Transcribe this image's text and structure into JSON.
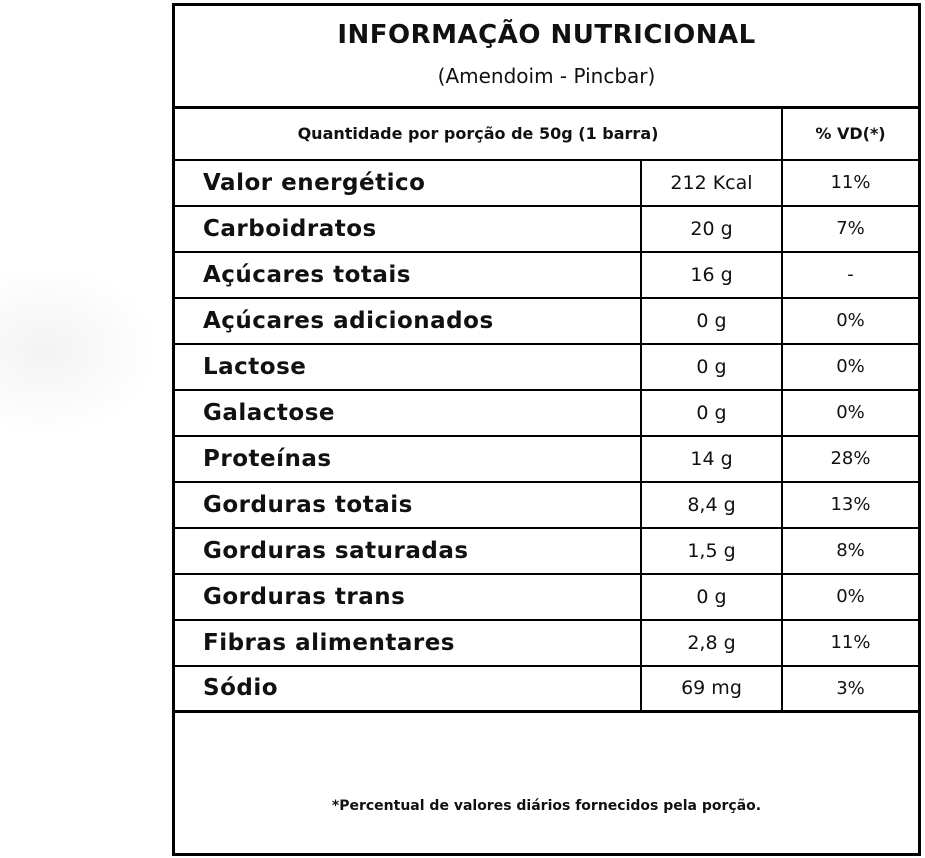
{
  "title": "INFORMAÇÃO NUTRICIONAL",
  "subtitle": "(Amendoim - Pincbar)",
  "header": {
    "portion": "Quantidade por porção de 50g (1 barra)",
    "vd": "% VD(*)"
  },
  "rows": [
    {
      "nutrient": "Valor energético",
      "amount": "212 Kcal",
      "vd": "11%"
    },
    {
      "nutrient": "Carboidratos",
      "amount": "20 g",
      "vd": "7%"
    },
    {
      "nutrient": "Açúcares totais",
      "amount": "16 g",
      "vd": "-"
    },
    {
      "nutrient": "Açúcares adicionados",
      "amount": "0 g",
      "vd": "0%"
    },
    {
      "nutrient": "Lactose",
      "amount": "0 g",
      "vd": "0%"
    },
    {
      "nutrient": "Galactose",
      "amount": "0 g",
      "vd": "0%"
    },
    {
      "nutrient": "Proteínas",
      "amount": "14 g",
      "vd": "28%"
    },
    {
      "nutrient": "Gorduras totais",
      "amount": "8,4 g",
      "vd": "13%"
    },
    {
      "nutrient": "Gorduras saturadas",
      "amount": "1,5 g",
      "vd": "8%"
    },
    {
      "nutrient": "Gorduras trans",
      "amount": "0 g",
      "vd": "0%"
    },
    {
      "nutrient": "Fibras alimentares",
      "amount": "2,8 g",
      "vd": "11%"
    },
    {
      "nutrient": "Sódio",
      "amount": "69 mg",
      "vd": "3%"
    }
  ],
  "footnote": "*Percentual de valores diários fornecidos pela porção."
}
